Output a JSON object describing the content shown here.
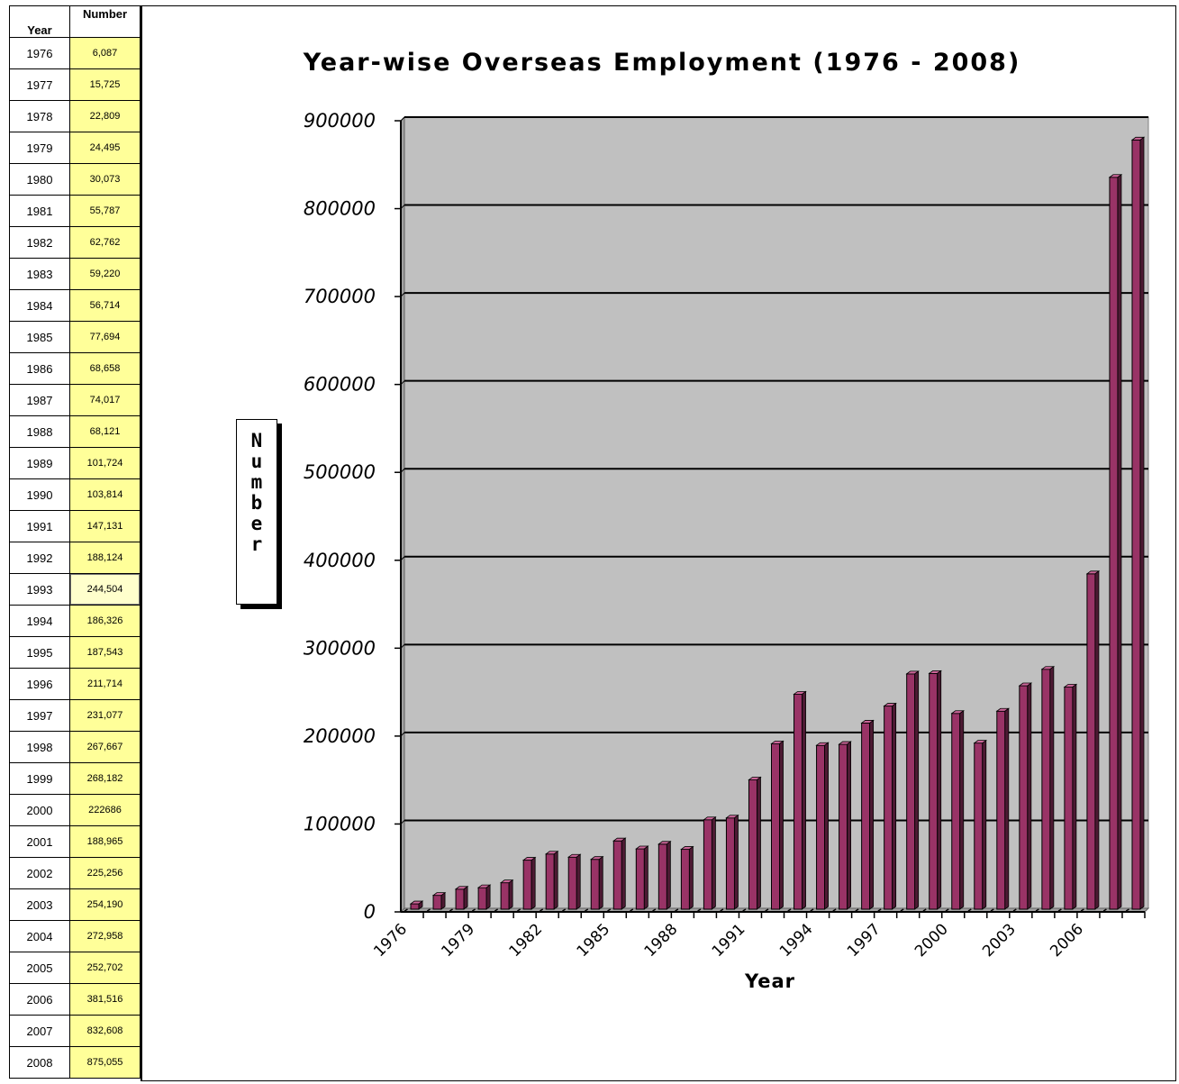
{
  "table": {
    "header_year": "Year",
    "header_number": "Number",
    "selected_row": 17,
    "rows": [
      {
        "year": "1976",
        "number": "6,087"
      },
      {
        "year": "1977",
        "number": "15,725"
      },
      {
        "year": "1978",
        "number": "22,809"
      },
      {
        "year": "1979",
        "number": "24,495"
      },
      {
        "year": "1980",
        "number": "30,073"
      },
      {
        "year": "1981",
        "number": "55,787"
      },
      {
        "year": "1982",
        "number": "62,762"
      },
      {
        "year": "1983",
        "number": "59,220"
      },
      {
        "year": "1984",
        "number": "56,714"
      },
      {
        "year": "1985",
        "number": "77,694"
      },
      {
        "year": "1986",
        "number": "68,658"
      },
      {
        "year": "1987",
        "number": "74,017"
      },
      {
        "year": "1988",
        "number": "68,121"
      },
      {
        "year": "1989",
        "number": "101,724"
      },
      {
        "year": "1990",
        "number": "103,814"
      },
      {
        "year": "1991",
        "number": "147,131"
      },
      {
        "year": "1992",
        "number": "188,124"
      },
      {
        "year": "1993",
        "number": "244,504"
      },
      {
        "year": "1994",
        "number": "186,326"
      },
      {
        "year": "1995",
        "number": "187,543"
      },
      {
        "year": "1996",
        "number": "211,714"
      },
      {
        "year": "1997",
        "number": "231,077"
      },
      {
        "year": "1998",
        "number": "267,667"
      },
      {
        "year": "1999",
        "number": "268,182"
      },
      {
        "year": "2000",
        "number": "222686"
      },
      {
        "year": "2001",
        "number": "188,965"
      },
      {
        "year": "2002",
        "number": "225,256"
      },
      {
        "year": "2003",
        "number": "254,190"
      },
      {
        "year": "2004",
        "number": "272,958"
      },
      {
        "year": "2005",
        "number": "252,702"
      },
      {
        "year": "2006",
        "number": "381,516"
      },
      {
        "year": "2007",
        "number": "832,608"
      },
      {
        "year": "2008",
        "number": "875,055"
      }
    ]
  },
  "chart_data": {
    "type": "bar",
    "title": "Year-wise Overseas Employment (1976 - 2008)",
    "xlabel": "Year",
    "ylabel": "Number",
    "ylim": [
      0,
      900000
    ],
    "yticks": [
      0,
      100000,
      200000,
      300000,
      400000,
      500000,
      600000,
      700000,
      800000,
      900000
    ],
    "ytick_labels": [
      "0",
      "100000",
      "200000",
      "300000",
      "400000",
      "500000",
      "600000",
      "700000",
      "800000",
      "900000"
    ],
    "xtick_labels": [
      "1976",
      "1979",
      "1982",
      "1985",
      "1988",
      "1991",
      "1994",
      "1997",
      "2000",
      "2003",
      "2006"
    ],
    "categories": [
      "1976",
      "1977",
      "1978",
      "1979",
      "1980",
      "1981",
      "1982",
      "1983",
      "1984",
      "1985",
      "1986",
      "1987",
      "1988",
      "1989",
      "1990",
      "1991",
      "1992",
      "1993",
      "1994",
      "1995",
      "1996",
      "1997",
      "1998",
      "1999",
      "2000",
      "2001",
      "2002",
      "2003",
      "2004",
      "2005",
      "2006",
      "2007",
      "2008"
    ],
    "values": [
      6087,
      15725,
      22809,
      24495,
      30073,
      55787,
      62762,
      59220,
      56714,
      77694,
      68658,
      74017,
      68121,
      101724,
      103814,
      147131,
      188124,
      244504,
      186326,
      187543,
      211714,
      231077,
      267667,
      268182,
      222686,
      188965,
      225256,
      254190,
      272958,
      252702,
      381516,
      832608,
      875055
    ],
    "grid": true,
    "colors": {
      "bar": "#993366",
      "bar_top": "#cc6699",
      "bar_side": "#4d1a33",
      "plot_bg": "#c0c0c0",
      "wall_edge": "#808080"
    }
  }
}
